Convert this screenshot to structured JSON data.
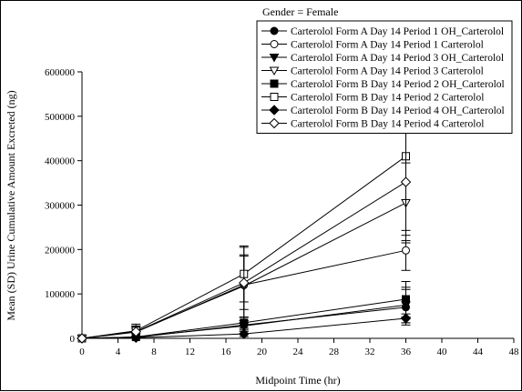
{
  "chart_data": {
    "type": "line",
    "subtitle": "Gender = Female",
    "xlabel": "Midpoint Time (hr)",
    "ylabel": "Mean (SD) Urine Cumulative Amount Excreted (ng)",
    "xlim": [
      0,
      48
    ],
    "ylim": [
      0,
      600000
    ],
    "x_ticks": [
      "0",
      "4",
      "8",
      "12",
      "16",
      "20",
      "24",
      "28",
      "32",
      "36",
      "40",
      "44",
      "48"
    ],
    "y_ticks": [
      "0",
      "100000",
      "200000",
      "300000",
      "400000",
      "500000",
      "600000"
    ],
    "x": [
      0,
      6,
      18,
      36
    ],
    "legend_position": "top-right",
    "grid": false,
    "series": [
      {
        "name": "Carterolol Form A  Day 14 Period 1 OH_Carterolol",
        "marker": "circle-filled",
        "values": [
          0,
          2000,
          30000,
          70000
        ],
        "sd": [
          0,
          1500,
          10000,
          40000
        ]
      },
      {
        "name": "Carterolol Form A  Day 14 Period 1 Carterolol",
        "marker": "circle-open",
        "values": [
          0,
          14000,
          120000,
          198000
        ],
        "sd": [
          0,
          12000,
          85000,
          45000
        ]
      },
      {
        "name": "Carterolol Form A  Day 14 Period 3 OH_Carterolol",
        "marker": "triangle-down-filled",
        "values": [
          0,
          3000,
          28000,
          75000
        ],
        "sd": [
          0,
          2000,
          12000,
          40000
        ]
      },
      {
        "name": "Carterolol Form A  Day 14 Period 3 Carterolol",
        "marker": "triangle-down-open",
        "values": [
          0,
          15000,
          118000,
          305000
        ],
        "sd": [
          0,
          12000,
          70000,
          90000
        ]
      },
      {
        "name": "Carterolol Form B  Day 14 Period 2 OH_Carterolol",
        "marker": "square-filled",
        "values": [
          0,
          3000,
          35000,
          88000
        ],
        "sd": [
          0,
          2000,
          12000,
          40000
        ]
      },
      {
        "name": "Carterolol Form B  Day 14 Period 2 Carterolol",
        "marker": "square-open",
        "values": [
          0,
          17000,
          145000,
          410000
        ],
        "sd": [
          0,
          15000,
          63000,
          190000
        ]
      },
      {
        "name": "Carterolol Form B  Day 14 Period 4 OH_Carterolol",
        "marker": "diamond-filled",
        "values": [
          0,
          1500,
          10000,
          45000
        ],
        "sd": [
          0,
          1000,
          6000,
          10000
        ]
      },
      {
        "name": "Carterolol Form B  Day 14 Period 4 Carterolol",
        "marker": "diamond-open",
        "values": [
          0,
          15000,
          125000,
          352000
        ],
        "sd": [
          0,
          13000,
          60000,
          120000
        ]
      }
    ]
  }
}
